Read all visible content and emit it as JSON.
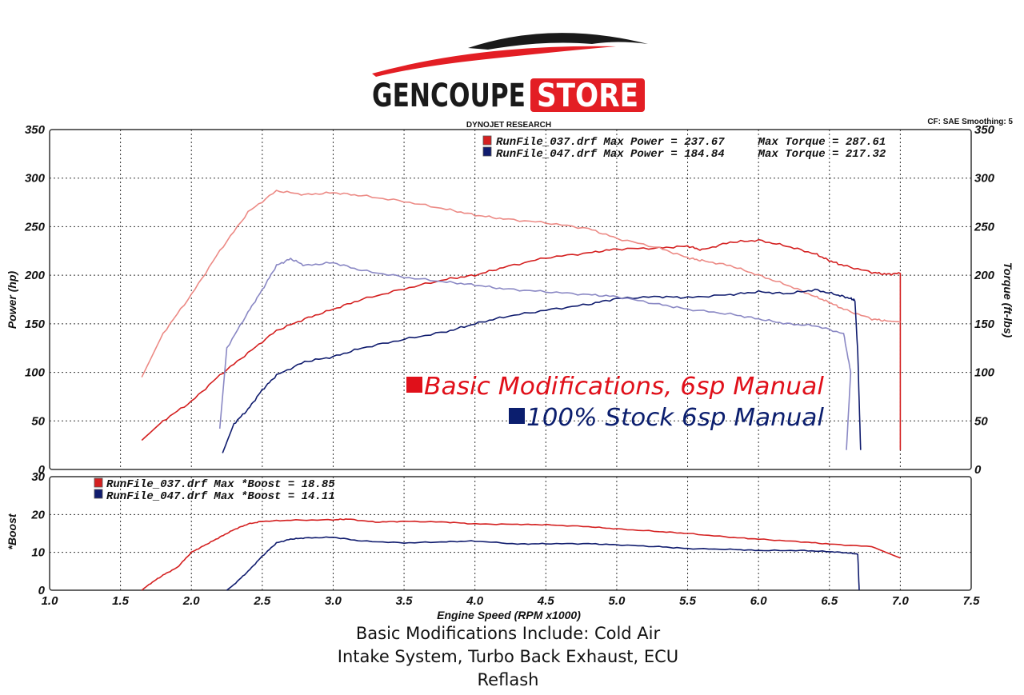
{
  "logo": {
    "brand_left": "GENCOUPE",
    "brand_right": "STORE"
  },
  "header": {
    "center": "DYNOJET RESEARCH",
    "right": "CF: SAE  Smoothing: 5"
  },
  "colors": {
    "run037_power": "#d42020",
    "run037_torque": "#ec8a85",
    "run047_power": "#101c6e",
    "run047_torque": "#8a88c4",
    "annot_red": "#e0101a",
    "annot_blue": "#0b1e6e",
    "logo_red": "#e31e24"
  },
  "annotations": {
    "basic": "Basic Modifications, 6sp Manual",
    "stock": "100% Stock 6sp Manual"
  },
  "caption": {
    "line1": "Basic Modifications Include:  Cold Air",
    "line2": "Intake System, Turbo Back Exhaust, ECU",
    "line3": "Reflash"
  },
  "chart_data": [
    {
      "type": "line",
      "xlabel": "",
      "ylabel": "Power (hp)",
      "y2label": "Torque (ft-lbs)",
      "xlim": [
        1.0,
        7.5
      ],
      "ylim": [
        0,
        350
      ],
      "y2lim": [
        0,
        350
      ],
      "grid": true,
      "x_ticks": [
        1.0,
        1.5,
        2.0,
        2.5,
        3.0,
        3.5,
        4.0,
        4.5,
        5.0,
        5.5,
        6.0,
        6.5,
        7.0,
        7.5
      ],
      "y_ticks": [
        0,
        50,
        100,
        150,
        200,
        250,
        300,
        350
      ],
      "legend": [
        {
          "text": "RunFile_037.drf Max Power = 237.67     Max Torque = 287.61",
          "color": "#d42020"
        },
        {
          "text": "RunFile_047.drf Max Power = 184.84     Max Torque = 217.32",
          "color": "#101c6e"
        }
      ],
      "series": [
        {
          "key": "run037_power",
          "axis": "left",
          "x": [
            1.65,
            1.8,
            2.0,
            2.2,
            2.4,
            2.6,
            2.8,
            3.0,
            3.2,
            3.5,
            3.8,
            4.0,
            4.2,
            4.5,
            4.8,
            5.0,
            5.3,
            5.5,
            5.6,
            5.8,
            6.0,
            6.2,
            6.4,
            6.5,
            6.6,
            6.8,
            6.9,
            7.0,
            7.0
          ],
          "y": [
            30,
            50,
            70,
            97,
            120,
            143,
            155,
            165,
            175,
            186,
            196,
            200,
            208,
            218,
            223,
            227,
            228,
            230,
            226,
            234,
            236,
            230,
            222,
            215,
            210,
            203,
            201,
            202,
            20
          ]
        },
        {
          "key": "run037_torque",
          "axis": "right",
          "x": [
            1.65,
            1.8,
            2.0,
            2.2,
            2.4,
            2.6,
            2.8,
            3.0,
            3.2,
            3.5,
            3.8,
            4.0,
            4.2,
            4.5,
            4.8,
            5.0,
            5.3,
            5.5,
            5.6,
            5.8,
            6.0,
            6.2,
            6.4,
            6.5,
            6.6,
            6.8,
            6.9,
            7.0
          ],
          "y": [
            95,
            140,
            180,
            225,
            265,
            287,
            283,
            285,
            282,
            276,
            268,
            262,
            258,
            254,
            248,
            238,
            228,
            218,
            215,
            210,
            200,
            190,
            178,
            172,
            165,
            155,
            153,
            152
          ]
        },
        {
          "key": "run047_power",
          "axis": "left",
          "x": [
            2.22,
            2.3,
            2.4,
            2.5,
            2.6,
            2.8,
            3.0,
            3.2,
            3.5,
            3.8,
            4.0,
            4.2,
            4.5,
            4.8,
            5.0,
            5.3,
            5.5,
            5.8,
            6.0,
            6.2,
            6.4,
            6.55,
            6.65,
            6.68,
            6.7,
            6.72
          ],
          "y": [
            17,
            47,
            62,
            82,
            97,
            111,
            116,
            125,
            134,
            142,
            150,
            157,
            164,
            170,
            176,
            178,
            177,
            180,
            183,
            181,
            185,
            180,
            176,
            174,
            120,
            20
          ]
        },
        {
          "key": "run047_torque",
          "axis": "right",
          "x": [
            2.2,
            2.25,
            2.4,
            2.5,
            2.6,
            2.7,
            2.8,
            3.0,
            3.2,
            3.5,
            3.8,
            4.0,
            4.2,
            4.5,
            4.8,
            5.0,
            5.3,
            5.5,
            5.8,
            6.0,
            6.2,
            6.4,
            6.6,
            6.65,
            6.62
          ],
          "y": [
            42,
            125,
            162,
            185,
            210,
            217,
            210,
            213,
            205,
            198,
            193,
            190,
            186,
            183,
            180,
            178,
            170,
            165,
            160,
            155,
            150,
            148,
            140,
            100,
            20
          ]
        }
      ]
    },
    {
      "type": "line",
      "xlabel": "Engine Speed (RPM x1000)",
      "ylabel": "*Boost",
      "xlim": [
        1.0,
        7.5
      ],
      "ylim": [
        0,
        30
      ],
      "grid": true,
      "x_ticks": [
        1.0,
        1.5,
        2.0,
        2.5,
        3.0,
        3.5,
        4.0,
        4.5,
        5.0,
        5.5,
        6.0,
        6.5,
        7.0,
        7.5
      ],
      "y_ticks": [
        0,
        10,
        20,
        30
      ],
      "legend": [
        {
          "text": "RunFile_037.drf Max *Boost = 18.85",
          "color": "#d42020"
        },
        {
          "text": "RunFile_047.drf Max *Boost = 14.11",
          "color": "#101c6e"
        }
      ],
      "series": [
        {
          "key": "run037_boost",
          "x": [
            1.65,
            1.7,
            1.8,
            1.9,
            2.0,
            2.1,
            2.2,
            2.3,
            2.4,
            2.5,
            2.7,
            3.0,
            3.1,
            3.3,
            3.5,
            3.8,
            4.0,
            4.3,
            4.5,
            4.8,
            5.0,
            5.3,
            5.5,
            5.8,
            6.0,
            6.3,
            6.5,
            6.8,
            7.0
          ],
          "y": [
            0,
            1.5,
            4,
            6,
            10,
            12,
            14,
            16,
            17.5,
            18.2,
            18.5,
            18.6,
            18.8,
            18,
            18.2,
            18,
            17.5,
            17.4,
            17.3,
            16.8,
            16.2,
            15.5,
            15,
            14,
            13.5,
            12.8,
            12.2,
            11.5,
            8.5
          ]
        },
        {
          "key": "run047_boost",
          "x": [
            2.25,
            2.3,
            2.4,
            2.5,
            2.6,
            2.7,
            2.8,
            3.0,
            3.2,
            3.5,
            3.8,
            4.0,
            4.3,
            4.5,
            4.8,
            5.0,
            5.3,
            5.5,
            5.8,
            6.0,
            6.3,
            6.5,
            6.65,
            6.7,
            6.71
          ],
          "y": [
            0,
            1.5,
            5,
            9,
            12.5,
            13.5,
            13.8,
            14,
            13,
            12.5,
            12.8,
            13,
            12.2,
            12.3,
            12.3,
            12,
            11.5,
            11,
            10.8,
            10.5,
            10.5,
            10.2,
            9.8,
            9.5,
            0
          ]
        }
      ]
    }
  ]
}
